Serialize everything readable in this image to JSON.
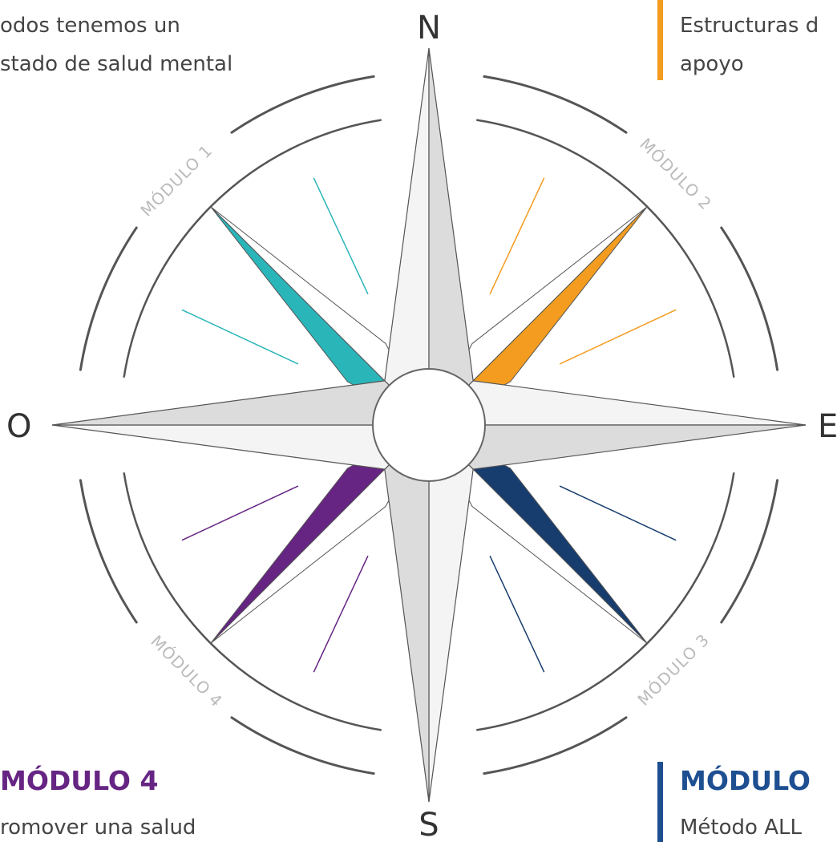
{
  "compass": {
    "directions": {
      "north": "N",
      "east": "E",
      "south": "S",
      "west": "O"
    },
    "modules": [
      "MÓDULO 1",
      "MÓDULO 2",
      "MÓDULO 3",
      "MÓDULO 4"
    ]
  },
  "notes": [
    {
      "lines": [
        "odos tenemos un",
        "stado de salud mental"
      ]
    },
    {
      "lines": [
        "Estructuras d",
        "apoyo"
      ]
    },
    {
      "title": "MÓDULO 4",
      "lines": [
        "romover una salud"
      ]
    },
    {
      "title": "MÓDULO",
      "lines": [
        "Método ALL"
      ]
    }
  ]
}
